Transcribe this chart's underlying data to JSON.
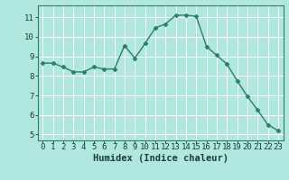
{
  "x": [
    0,
    1,
    2,
    3,
    4,
    5,
    6,
    7,
    8,
    9,
    10,
    11,
    12,
    13,
    14,
    15,
    16,
    17,
    18,
    19,
    20,
    21,
    22,
    23
  ],
  "y": [
    8.65,
    8.65,
    8.45,
    8.2,
    8.2,
    8.45,
    8.35,
    8.35,
    9.55,
    8.9,
    9.65,
    10.45,
    10.65,
    11.1,
    11.1,
    11.05,
    9.5,
    9.05,
    8.6,
    7.75,
    6.95,
    6.25,
    5.5,
    5.2
  ],
  "line_color": "#2d7d6b",
  "marker": "D",
  "markersize": 2.5,
  "linewidth": 1.0,
  "bg_color": "#b0e8e0",
  "grid_color": "#ffffff",
  "xlabel": "Humidex (Indice chaleur)",
  "xlabel_fontsize": 7.5,
  "xlabel_fontweight": "bold",
  "xlabel_color": "#1a3d35",
  "yticks": [
    5,
    6,
    7,
    8,
    9,
    10,
    11
  ],
  "xticks": [
    0,
    1,
    2,
    3,
    4,
    5,
    6,
    7,
    8,
    9,
    10,
    11,
    12,
    13,
    14,
    15,
    16,
    17,
    18,
    19,
    20,
    21,
    22,
    23
  ],
  "xlim": [
    -0.5,
    23.5
  ],
  "ylim": [
    4.7,
    11.6
  ],
  "tick_fontsize": 6.5,
  "tick_color": "#1a3d35",
  "spine_color": "#2d7d6b"
}
